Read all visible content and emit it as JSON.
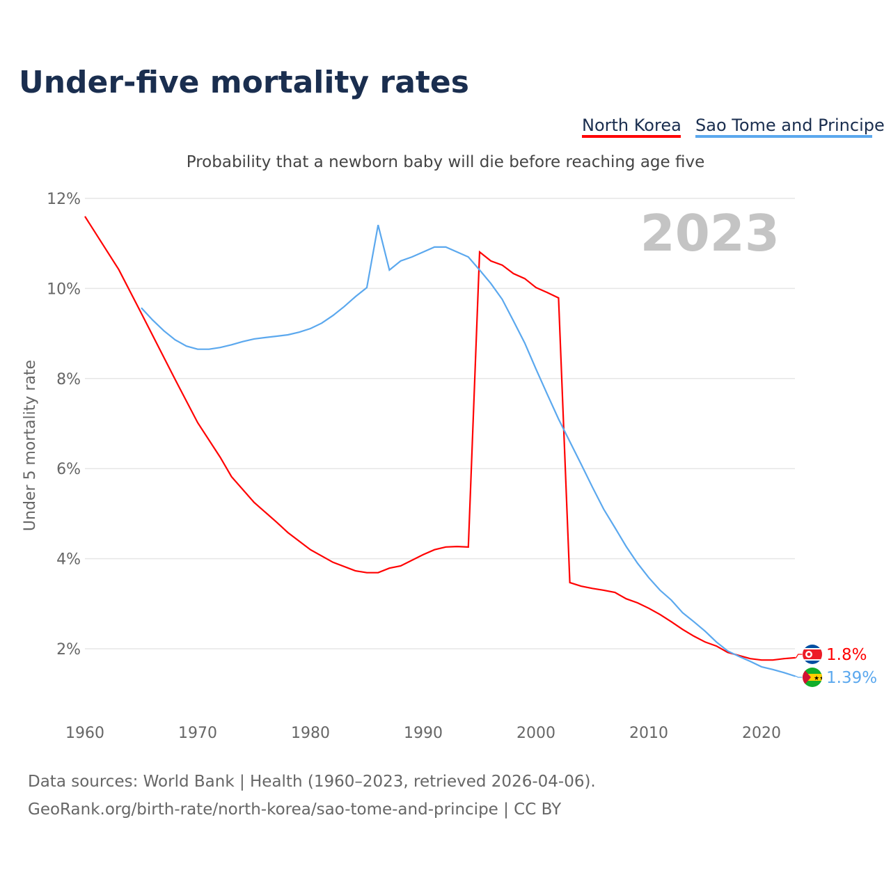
{
  "chart_data": {
    "type": "line",
    "title": "Under-five mortality rates",
    "subtitle": "Probability that a newborn baby will die before reaching age five",
    "ylabel": "Under 5 mortality rate",
    "xlabel": "",
    "year_label": "2023",
    "xlim": [
      1960,
      2023
    ],
    "ylim": [
      1,
      12
    ],
    "grid": true,
    "legend_position": "top-right",
    "x_ticks": [
      1960,
      1970,
      1980,
      1990,
      2000,
      2010,
      2020
    ],
    "y_ticks": [
      {
        "v": 2,
        "label": "2%"
      },
      {
        "v": 4,
        "label": "4%"
      },
      {
        "v": 6,
        "label": "6%"
      },
      {
        "v": 8,
        "label": "8%"
      },
      {
        "v": 10,
        "label": "10%"
      },
      {
        "v": 12,
        "label": "12%"
      }
    ],
    "series": [
      {
        "name": "North Korea",
        "color": "#ff0000",
        "end_label": "1.8%",
        "flag": "north-korea",
        "x": [
          1960,
          1963,
          1965,
          1968,
          1970,
          1972,
          1973,
          1975,
          1977,
          1978,
          1980,
          1982,
          1984,
          1985,
          1986,
          1987,
          1988,
          1990,
          1991,
          1992,
          1993,
          1994,
          1995,
          1996,
          1997,
          1998,
          1999,
          2000,
          2001,
          2002,
          2003,
          2004,
          2005,
          2006,
          2007,
          2008,
          2009,
          2010,
          2011,
          2012,
          2013,
          2014,
          2015,
          2016,
          2017,
          2018,
          2019,
          2020,
          2021,
          2022,
          2023
        ],
        "values": [
          11.6,
          10.42,
          9.45,
          7.98,
          7.02,
          6.25,
          5.82,
          5.25,
          4.81,
          4.58,
          4.2,
          3.92,
          3.73,
          3.69,
          3.69,
          3.79,
          3.84,
          4.09,
          4.2,
          4.26,
          4.27,
          4.26,
          10.81,
          10.61,
          10.52,
          10.33,
          10.22,
          10.02,
          9.91,
          9.79,
          3.47,
          3.39,
          3.34,
          3.3,
          3.25,
          3.11,
          3.02,
          2.9,
          2.76,
          2.6,
          2.43,
          2.28,
          2.15,
          2.06,
          1.92,
          1.85,
          1.78,
          1.75,
          1.75,
          1.78,
          1.8
        ]
      },
      {
        "name": "Sao Tome and Principe",
        "color": "#5ba8ee",
        "end_label": "1.39%",
        "flag": "sao-tome-and-principe",
        "x": [
          1965,
          1966,
          1967,
          1968,
          1969,
          1970,
          1971,
          1972,
          1973,
          1974,
          1975,
          1976,
          1977,
          1978,
          1979,
          1980,
          1981,
          1982,
          1983,
          1984,
          1985,
          1986,
          1987,
          1988,
          1989,
          1990,
          1991,
          1992,
          1993,
          1994,
          1995,
          1996,
          1997,
          1998,
          1999,
          2000,
          2001,
          2002,
          2003,
          2004,
          2005,
          2006,
          2007,
          2008,
          2009,
          2010,
          2011,
          2012,
          2013,
          2014,
          2015,
          2016,
          2017,
          2018,
          2019,
          2020,
          2021,
          2022,
          2023
        ],
        "values": [
          9.57,
          9.3,
          9.06,
          8.86,
          8.72,
          8.65,
          8.65,
          8.69,
          8.75,
          8.82,
          8.88,
          8.91,
          8.94,
          8.97,
          9.03,
          9.11,
          9.23,
          9.4,
          9.6,
          9.82,
          10.02,
          11.41,
          10.41,
          10.61,
          10.7,
          10.81,
          10.92,
          10.92,
          10.81,
          10.7,
          10.41,
          10.11,
          9.76,
          9.28,
          8.79,
          8.21,
          7.65,
          7.1,
          6.6,
          6.1,
          5.59,
          5.1,
          4.69,
          4.27,
          3.9,
          3.58,
          3.3,
          3.08,
          2.8,
          2.6,
          2.39,
          2.15,
          1.95,
          1.83,
          1.72,
          1.6,
          1.54,
          1.47,
          1.39
        ]
      }
    ]
  },
  "footer": {
    "line1": "Data sources: World Bank | Health (1960–2023, retrieved 2026-04-06).",
    "line2": "GeoRank.org/birth-rate/north-korea/sao-tome-and-principe | CC BY"
  }
}
